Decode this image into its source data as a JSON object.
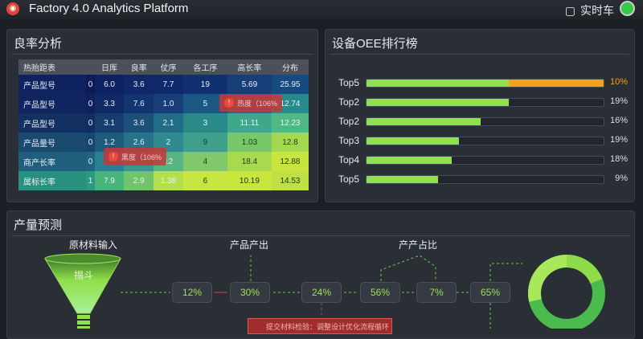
{
  "header": {
    "title": "Factory 4.0 Analytics Platform",
    "realtime_label": "实时车",
    "status_color": "#35c94a"
  },
  "yield": {
    "title": "良率分析",
    "columns": [
      "热贻距表",
      "",
      "日厍",
      "良率",
      "仗序",
      "各工序",
      "高长率",
      "分布"
    ],
    "rows": [
      {
        "label": "产品型号",
        "cells": [
          "0",
          "6.0",
          "3.6",
          "7.7",
          "19",
          "5.69",
          "25.95"
        ]
      },
      {
        "label": "产品型号",
        "cells": [
          "0",
          "3.3",
          "7.6",
          "1.0",
          "5",
          "",
          "12.74"
        ]
      },
      {
        "label": "产品型号",
        "cells": [
          "0",
          "3.1",
          "3.6",
          "2.1",
          "3",
          "11.11",
          "12.23"
        ]
      },
      {
        "label": "产品量号",
        "cells": [
          "0",
          "1.2",
          "2.6",
          "2",
          "9",
          "1.03",
          "12.8"
        ]
      },
      {
        "label": "商产长率",
        "cells": [
          "0",
          "",
          "",
          "12",
          "4",
          "18.4",
          "12.88"
        ]
      },
      {
        "label": "属标长率",
        "cells": [
          "1",
          "7.9",
          "2.9",
          "1.38",
          "6",
          "10.19",
          "14.53"
        ]
      }
    ],
    "colors": [
      [
        "#0f2260",
        "#0c1a55",
        "#0e2262",
        "#10286a",
        "#0f2a6c",
        "#11306f",
        "#173e77",
        "#174a7e"
      ],
      [
        "#10245f",
        "#0e215c",
        "#102a66",
        "#123470",
        "#173e7a",
        "#1b5784",
        "#1f6d88",
        "#278a8c"
      ],
      [
        "#133063",
        "#112d62",
        "#163d6e",
        "#1b5079",
        "#216c86",
        "#2a8a8a",
        "#3fa88a",
        "#4fb884"
      ],
      [
        "#1a4a70",
        "#184470",
        "#1e5a7c",
        "#25728a",
        "#2e8a8e",
        "#3ea08c",
        "#78c86a",
        "#a3d850"
      ],
      [
        "#1f5f7c",
        "#1f6580",
        "#2a8090",
        "#38968e",
        "#5ab482",
        "#80c86a",
        "#a8da4f",
        "#c7e53e"
      ],
      [
        "#28907e",
        "#2c9a80",
        "#48b47a",
        "#72c46c",
        "#b3df4b",
        "#c6e741",
        "#c8e63e",
        "#bfe042"
      ]
    ],
    "tooltips": [
      {
        "text": "热度（106%"
      },
      {
        "text": "黑度（106%"
      }
    ]
  },
  "oee": {
    "title": "设备OEE排行榜",
    "bars": [
      {
        "label": "Top5",
        "fill": 0.6,
        "highlight": 0.4,
        "value": "10%",
        "value_color": "#f4a01c"
      },
      {
        "label": "Top2",
        "fill": 0.6,
        "value": "19%"
      },
      {
        "label": "Top2",
        "fill": 0.48,
        "value": "16%"
      },
      {
        "label": "Top3",
        "fill": 0.39,
        "value": "19%"
      },
      {
        "label": "Top4",
        "fill": 0.36,
        "value": "18%"
      },
      {
        "label": "Top5",
        "fill": 0.3,
        "value": "9%"
      }
    ]
  },
  "forecast": {
    "title": "产量预测",
    "labels": [
      "原材料输入",
      "产品产出",
      "产产占比"
    ],
    "funnel_label": "搨斗",
    "nodes": [
      "12%",
      "30%",
      "24%",
      "56%",
      "7%",
      "65%"
    ],
    "warning": "提交材料检验：调整设计优化流程循环"
  }
}
